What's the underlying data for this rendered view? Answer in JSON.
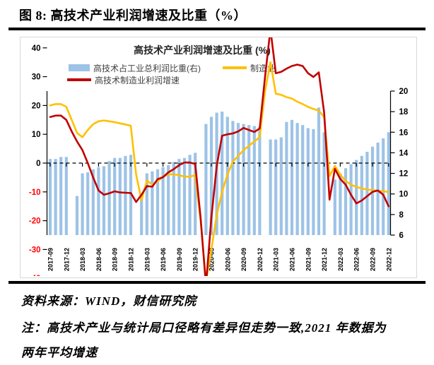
{
  "page": {
    "header_title": "图 8:  高技术产业利润增速及比重（%）",
    "source": "资料来源：WIND，财信研究院",
    "note": "注：高技术产业与统计局口径略有差异但走势一致,2021 年数据为两年平均增速"
  },
  "chart_data": {
    "type": "bar+line combo",
    "title": "高技术产业利润增速及比重 (%)",
    "legend": [
      {
        "name": "高技术占工业总利润比重(右)",
        "type": "bar",
        "color": "#9DC3E6",
        "axis": "right"
      },
      {
        "name": "制造业",
        "type": "line",
        "color": "#FFC000",
        "axis": "left"
      },
      {
        "name": "高技术制造业利润增速",
        "type": "line",
        "color": "#C00000",
        "axis": "left"
      }
    ],
    "left_axis": {
      "min": -50,
      "max": 50,
      "step": 10,
      "negative_label_color": "#FF0000",
      "zero_line": "dashed"
    },
    "right_axis": {
      "min": 6,
      "max": 20,
      "step": 2
    },
    "x_tick_labels": [
      "2017-09",
      "2017-12",
      "2018-03",
      "2018-06",
      "2018-09",
      "2018-12",
      "2019-03",
      "2019-06",
      "2019-09",
      "2019-12",
      "2020-03",
      "2020-06",
      "2020-09",
      "2020-12",
      "2021-03",
      "2021-06",
      "2021-09",
      "2021-12",
      "2022-03",
      "2022-06",
      "2022-09",
      "2022-12"
    ],
    "x": [
      "2017-09",
      "2017-10",
      "2017-11",
      "2017-12",
      "2018-01",
      "2018-02",
      "2018-03",
      "2018-04",
      "2018-05",
      "2018-06",
      "2018-07",
      "2018-08",
      "2018-09",
      "2018-10",
      "2018-11",
      "2018-12",
      "2019-01",
      "2019-02",
      "2019-03",
      "2019-04",
      "2019-05",
      "2019-06",
      "2019-07",
      "2019-08",
      "2019-09",
      "2019-10",
      "2019-11",
      "2019-12",
      "2020-01",
      "2020-02",
      "2020-03",
      "2020-04",
      "2020-05",
      "2020-06",
      "2020-07",
      "2020-08",
      "2020-09",
      "2020-10",
      "2020-11",
      "2020-12",
      "2021-01",
      "2021-02",
      "2021-03",
      "2021-04",
      "2021-05",
      "2021-06",
      "2021-07",
      "2021-08",
      "2021-09",
      "2021-10",
      "2021-11",
      "2021-12",
      "2022-01",
      "2022-02",
      "2022-03",
      "2022-04",
      "2022-05",
      "2022-06",
      "2022-07",
      "2022-08",
      "2022-09",
      "2022-10",
      "2022-11",
      "2022-12"
    ],
    "series": {
      "share_right": [
        13.4,
        13.4,
        13.6,
        13.6,
        null,
        9.8,
        12.0,
        12.1,
        12.4,
        12.6,
        12.7,
        13.2,
        13.5,
        13.5,
        13.7,
        13.8,
        null,
        9.9,
        12.0,
        12.2,
        12.4,
        12.6,
        12.8,
        13.1,
        13.4,
        13.5,
        13.8,
        14.0,
        null,
        16.8,
        17.5,
        17.9,
        18.0,
        17.5,
        17.1,
        16.9,
        16.8,
        16.7,
        16.6,
        16.5,
        null,
        15.3,
        15.3,
        15.5,
        17.0,
        17.2,
        16.9,
        16.7,
        16.4,
        16.3,
        18.4,
        16.0,
        null,
        11.4,
        12.0,
        12.5,
        12.9,
        13.3,
        13.7,
        14.1,
        14.6,
        15.0,
        15.4,
        16.0
      ],
      "manufacturing": [
        20,
        20.5,
        20.5,
        19.5,
        15,
        10.5,
        9,
        11.5,
        13.5,
        14.5,
        14.8,
        14.5,
        14.2,
        13.8,
        13.4,
        13,
        -4,
        -12.9,
        -6,
        -7.5,
        -6.3,
        -4.7,
        -3.9,
        -3.9,
        -4.2,
        -4.7,
        -4.7,
        -4.2,
        -20,
        -41,
        -30,
        -18,
        -10,
        -4,
        0.5,
        2.5,
        4.5,
        6,
        7.5,
        9,
        25,
        35,
        24.1,
        23.7,
        22.9,
        22.4,
        21.3,
        20.5,
        19.5,
        18.8,
        18.2,
        16,
        -4.5,
        -1,
        -4,
        -6.2,
        -7.5,
        -8.3,
        -8.8,
        -9.2,
        -9.4,
        -9.6,
        -9.8,
        -10
      ],
      "hightech": [
        16,
        16.5,
        16.5,
        15,
        11,
        7.5,
        4.5,
        0,
        -5,
        -9.5,
        -11,
        -10.5,
        -9.8,
        -10.2,
        -10.3,
        -10.4,
        -13.5,
        -11,
        -8,
        -8.2,
        -5.6,
        -4.9,
        -3.2,
        -2.1,
        -0.7,
        0.2,
        0.2,
        -0.3,
        -19,
        -42.5,
        -19,
        -1,
        9.5,
        10,
        10.3,
        11,
        12.2,
        11.5,
        10.8,
        12,
        30,
        46.5,
        31.2,
        31.7,
        32.8,
        33.7,
        34.2,
        33.7,
        31.2,
        29.9,
        31.5,
        17.5,
        -12.7,
        -2,
        -5.5,
        -7.5,
        -11,
        -14,
        -13,
        -11.5,
        -10,
        -9.5,
        -11,
        -15
      ]
    }
  }
}
